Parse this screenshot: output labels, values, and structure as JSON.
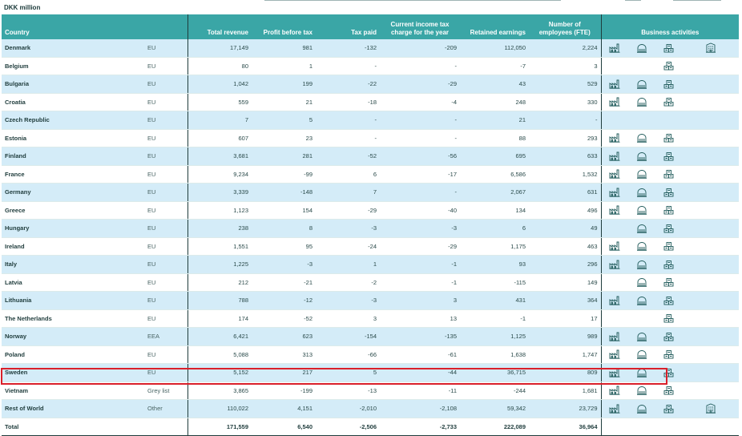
{
  "unit_label": "DKK million",
  "columns": {
    "country": "Country",
    "total_revenue": "Total revenue",
    "profit_before_tax": "Profit before tax",
    "tax_paid": "Tax paid",
    "current_income_tax": "Current income tax charge for the year",
    "retained_earnings": "Retained earnings",
    "employees": "Number of employees (FTE)",
    "business_activities": "Business activities"
  },
  "icon_names": [
    "factory-icon",
    "dome-building-icon",
    "stacked-boxes-icon",
    "office-building-icon"
  ],
  "colors": {
    "header_bg": "#3aa6a6",
    "row_alt": "#d4ecf8",
    "highlight": "#d9202a",
    "icon": "#1f5a5a"
  },
  "rows": [
    {
      "country": "Denmark",
      "region": "EU",
      "rev": "17,149",
      "pbt": "981",
      "tax": "-132",
      "cit": "-209",
      "ret": "112,050",
      "emp": "2,224",
      "acts": [
        1,
        1,
        1,
        1
      ]
    },
    {
      "country": "Belgium",
      "region": "EU",
      "rev": "80",
      "pbt": "1",
      "tax": "-",
      "cit": "-",
      "ret": "-7",
      "emp": "3",
      "acts": [
        0,
        0,
        1,
        0
      ]
    },
    {
      "country": "Bulgaria",
      "region": "EU",
      "rev": "1,042",
      "pbt": "199",
      "tax": "-22",
      "cit": "-29",
      "ret": "43",
      "emp": "529",
      "acts": [
        1,
        1,
        1,
        0
      ]
    },
    {
      "country": "Croatia",
      "region": "EU",
      "rev": "559",
      "pbt": "21",
      "tax": "-18",
      "cit": "-4",
      "ret": "248",
      "emp": "330",
      "acts": [
        1,
        1,
        1,
        0
      ]
    },
    {
      "country": "Czech Republic",
      "region": "EU",
      "rev": "7",
      "pbt": "5",
      "tax": "-",
      "cit": "-",
      "ret": "21",
      "emp": "-",
      "acts": [
        0,
        0,
        0,
        0
      ]
    },
    {
      "country": "Estonia",
      "region": "EU",
      "rev": "607",
      "pbt": "23",
      "tax": "-",
      "cit": "-",
      "ret": "88",
      "emp": "293",
      "acts": [
        1,
        1,
        1,
        0
      ]
    },
    {
      "country": "Finland",
      "region": "EU",
      "rev": "3,681",
      "pbt": "281",
      "tax": "-52",
      "cit": "-56",
      "ret": "695",
      "emp": "633",
      "acts": [
        1,
        1,
        1,
        0
      ]
    },
    {
      "country": "France",
      "region": "EU",
      "rev": "9,234",
      "pbt": "-99",
      "tax": "6",
      "cit": "-17",
      "ret": "6,586",
      "emp": "1,532",
      "acts": [
        1,
        1,
        1,
        0
      ]
    },
    {
      "country": "Germany",
      "region": "EU",
      "rev": "3,339",
      "pbt": "-148",
      "tax": "7",
      "cit": "-",
      "ret": "2,067",
      "emp": "631",
      "acts": [
        1,
        1,
        1,
        0
      ]
    },
    {
      "country": "Greece",
      "region": "EU",
      "rev": "1,123",
      "pbt": "154",
      "tax": "-29",
      "cit": "-40",
      "ret": "134",
      "emp": "496",
      "acts": [
        1,
        1,
        1,
        0
      ]
    },
    {
      "country": "Hungary",
      "region": "EU",
      "rev": "238",
      "pbt": "8",
      "tax": "-3",
      "cit": "-3",
      "ret": "6",
      "emp": "49",
      "acts": [
        0,
        1,
        1,
        0
      ]
    },
    {
      "country": "Ireland",
      "region": "EU",
      "rev": "1,551",
      "pbt": "95",
      "tax": "-24",
      "cit": "-29",
      "ret": "1,175",
      "emp": "463",
      "acts": [
        1,
        1,
        1,
        0
      ]
    },
    {
      "country": "Italy",
      "region": "EU",
      "rev": "1,225",
      "pbt": "-3",
      "tax": "1",
      "cit": "-1",
      "ret": "93",
      "emp": "296",
      "acts": [
        1,
        1,
        1,
        0
      ]
    },
    {
      "country": "Latvia",
      "region": "EU",
      "rev": "212",
      "pbt": "-21",
      "tax": "-2",
      "cit": "-1",
      "ret": "-115",
      "emp": "149",
      "acts": [
        0,
        1,
        1,
        0
      ]
    },
    {
      "country": "Lithuania",
      "region": "EU",
      "rev": "788",
      "pbt": "-12",
      "tax": "-3",
      "cit": "3",
      "ret": "431",
      "emp": "364",
      "acts": [
        1,
        1,
        1,
        0
      ]
    },
    {
      "country": "The Netherlands",
      "region": "EU",
      "rev": "174",
      "pbt": "-52",
      "tax": "3",
      "cit": "13",
      "ret": "-1",
      "emp": "17",
      "acts": [
        0,
        0,
        1,
        0
      ]
    },
    {
      "country": "Norway",
      "region": "EEA",
      "rev": "6,421",
      "pbt": "623",
      "tax": "-154",
      "cit": "-135",
      "ret": "1,125",
      "emp": "989",
      "acts": [
        1,
        1,
        1,
        0
      ]
    },
    {
      "country": "Poland",
      "region": "EU",
      "rev": "5,088",
      "pbt": "313",
      "tax": "-66",
      "cit": "-61",
      "ret": "1,638",
      "emp": "1,747",
      "acts": [
        1,
        1,
        1,
        0
      ]
    },
    {
      "country": "Sweden",
      "region": "EU",
      "rev": "5,152",
      "pbt": "217",
      "tax": "5",
      "cit": "-44",
      "ret": "36,715",
      "emp": "809",
      "acts": [
        1,
        1,
        1,
        0
      ]
    },
    {
      "country": "Vietnam",
      "region": "Grey list",
      "rev": "3,865",
      "pbt": "-199",
      "tax": "-13",
      "cit": "-11",
      "ret": "-244",
      "emp": "1,681",
      "acts": [
        1,
        1,
        1,
        0
      ]
    },
    {
      "country": "Rest of World",
      "region": "Other",
      "rev": "110,022",
      "pbt": "4,151",
      "tax": "-2,010",
      "cit": "-2,108",
      "ret": "59,342",
      "emp": "23,729",
      "acts": [
        1,
        1,
        1,
        1
      ]
    }
  ],
  "total": {
    "label": "Total",
    "rev": "171,559",
    "pbt": "6,540",
    "tax": "-2,506",
    "cit": "-2,733",
    "ret": "222,089",
    "emp": "36,964"
  }
}
